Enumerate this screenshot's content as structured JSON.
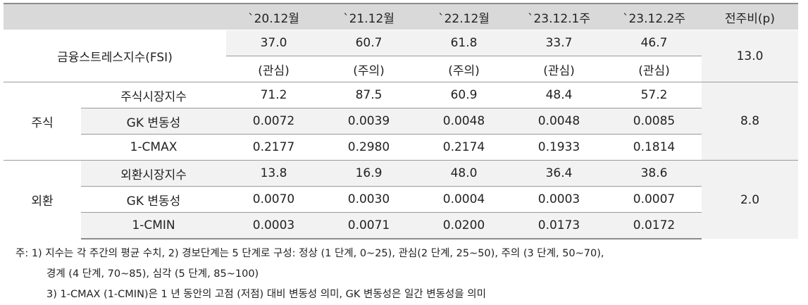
{
  "header": {
    "periods": [
      "`20.12월",
      "`21.12월",
      "`22.12월",
      "`23.12.1주",
      "`23.12.2주"
    ],
    "change": "전주비(p)"
  },
  "fsi": {
    "label": "금융스트레스지수(FSI)",
    "values": [
      "37.0",
      "60.7",
      "61.8",
      "33.7",
      "46.7"
    ],
    "stages": [
      "(관심)",
      "(주의)",
      "(주의)",
      "(관심)",
      "(관심)"
    ],
    "change": "13.0"
  },
  "stock": {
    "label": "주식",
    "change": "8.8",
    "rows": [
      {
        "label": "주식시장지수",
        "values": [
          "71.2",
          "87.5",
          "60.9",
          "48.4",
          "57.2"
        ]
      },
      {
        "label": "GK 변동성",
        "values": [
          "0.0072",
          "0.0039",
          "0.0048",
          "0.0048",
          "0.0085"
        ]
      },
      {
        "label": "1-CMAX",
        "values": [
          "0.2177",
          "0.2980",
          "0.2174",
          "0.1933",
          "0.1814"
        ]
      }
    ]
  },
  "fx": {
    "label": "외환",
    "change": "2.0",
    "rows": [
      {
        "label": "외환시장지수",
        "values": [
          "13.8",
          "16.9",
          "48.0",
          "36.4",
          "38.6"
        ]
      },
      {
        "label": "GK 변동성",
        "values": [
          "0.0070",
          "0.0030",
          "0.0004",
          "0.0003",
          "0.0007"
        ]
      },
      {
        "label": "1-CMIN",
        "values": [
          "0.0003",
          "0.0071",
          "0.0200",
          "0.0173",
          "0.0172"
        ]
      }
    ]
  },
  "notes": [
    "주: 1) 지수는 각 주간의 평균 수치, 2) 경보단계는 5 단계로 구성: 정상 (1 단계, 0~25), 관심(2 단계, 25~50), 주의 (3 단계, 50~70),",
    "경계 (4 단계, 70~85), 심각 (5 단계, 85~100)",
    "3) 1-CMAX (1-CMIN)은 1 년 동안의 고점 (저점) 대비 변동성 의미, GK 변동성은 일간 변동성을 의미"
  ]
}
